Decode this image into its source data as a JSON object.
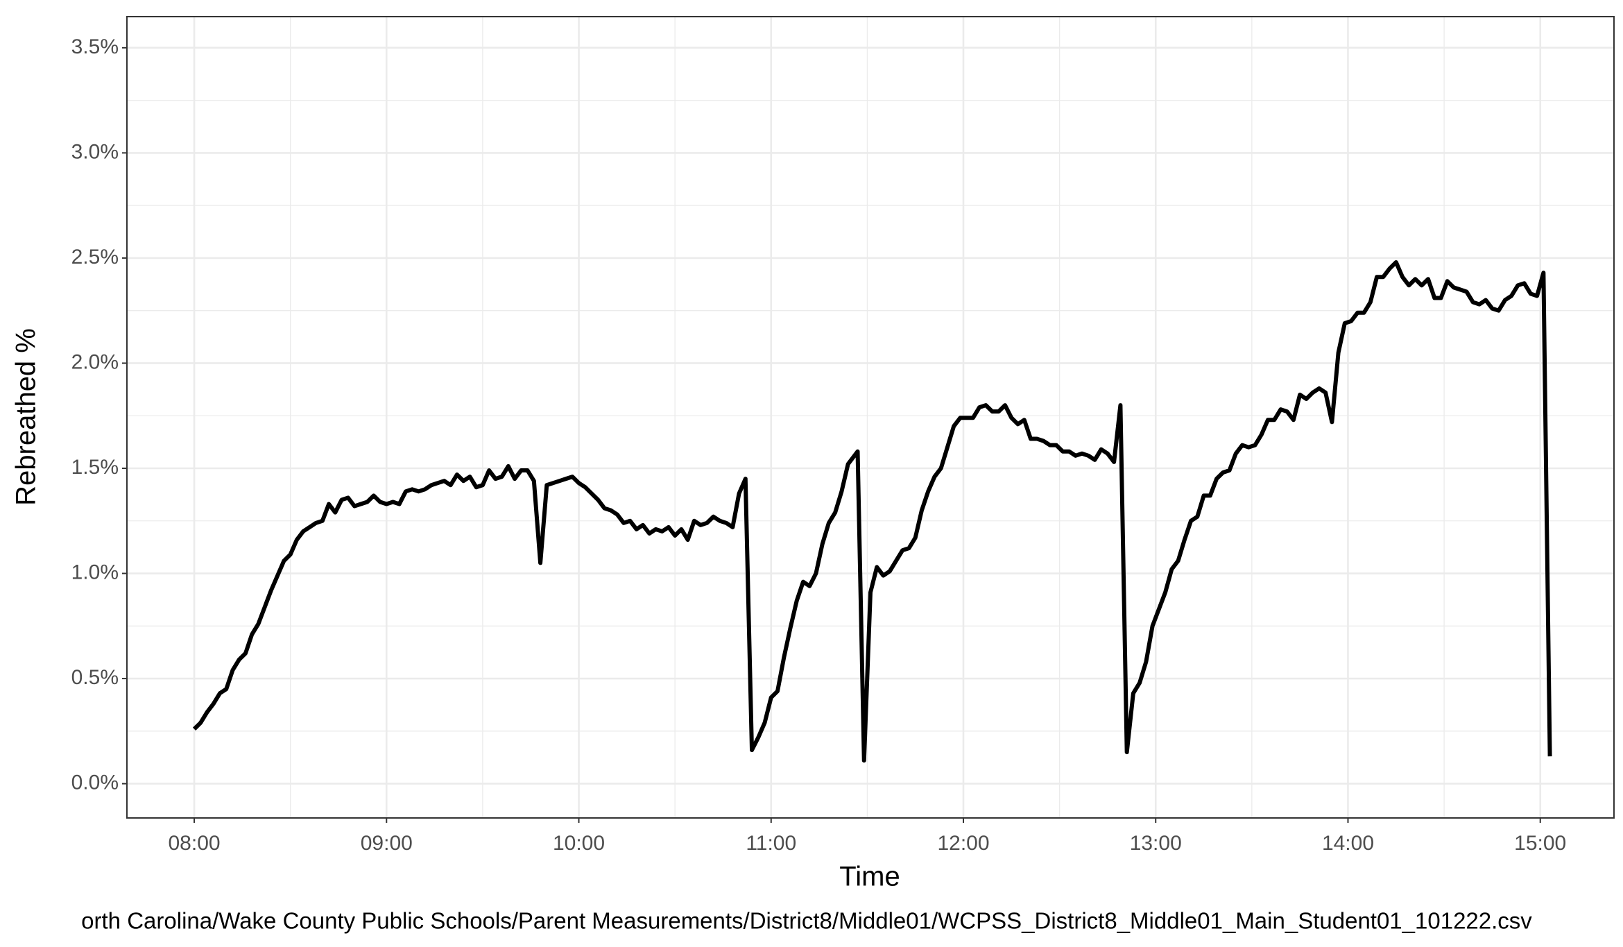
{
  "chart_data": {
    "type": "line",
    "x_label": "Time",
    "y_label": "Rebreathed %",
    "caption": "orth Carolina/Wake County Public Schools/Parent Measurements/District8/Middle01/WCPSS_District8_Middle01_Main_Student01_101222.csv",
    "color": "#000000",
    "grid": true,
    "xlim": [
      "07:39",
      "15:23"
    ],
    "xticks": [
      "08:00",
      "09:00",
      "10:00",
      "11:00",
      "12:00",
      "13:00",
      "14:00",
      "15:00"
    ],
    "ylim": [
      -0.163,
      3.648
    ],
    "yticks": [
      {
        "value": 0,
        "label": "0.0%"
      },
      {
        "value": 0.5,
        "label": "0.5%"
      },
      {
        "value": 1,
        "label": "1.0%"
      },
      {
        "value": 1.5,
        "label": "1.5%"
      },
      {
        "value": 2,
        "label": "2.0%"
      },
      {
        "value": 2.5,
        "label": "2.5%"
      },
      {
        "value": 3,
        "label": "3.0%"
      },
      {
        "value": 3.5,
        "label": "3.5%"
      }
    ],
    "x": [
      "08:00",
      "08:02",
      "08:04",
      "08:06",
      "08:08",
      "08:10",
      "08:12",
      "08:14",
      "08:16",
      "08:18",
      "08:20",
      "08:22",
      "08:24",
      "08:26",
      "08:28",
      "08:30",
      "08:32",
      "08:34",
      "08:36",
      "08:38",
      "08:40",
      "08:42",
      "08:44",
      "08:46",
      "08:48",
      "08:50",
      "08:52",
      "08:54",
      "08:56",
      "08:58",
      "09:00",
      "09:02",
      "09:04",
      "09:06",
      "09:08",
      "09:10",
      "09:12",
      "09:14",
      "09:16",
      "09:18",
      "09:20",
      "09:22",
      "09:24",
      "09:26",
      "09:28",
      "09:30",
      "09:32",
      "09:34",
      "09:36",
      "09:38",
      "09:40",
      "09:42",
      "09:44",
      "09:46",
      "09:48",
      "09:50",
      "09:52",
      "09:54",
      "09:56",
      "09:58",
      "10:00",
      "10:02",
      "10:04",
      "10:06",
      "10:08",
      "10:10",
      "10:12",
      "10:14",
      "10:16",
      "10:18",
      "10:20",
      "10:22",
      "10:24",
      "10:26",
      "10:28",
      "10:30",
      "10:32",
      "10:34",
      "10:36",
      "10:38",
      "10:40",
      "10:42",
      "10:44",
      "10:46",
      "10:48",
      "10:50",
      "10:52",
      "10:54",
      "10:56",
      "10:58",
      "11:00",
      "11:02",
      "11:04",
      "11:06",
      "11:08",
      "11:10",
      "11:12",
      "11:14",
      "11:16",
      "11:18",
      "11:20",
      "11:22",
      "11:24",
      "11:27",
      "11:29",
      "11:31",
      "11:33",
      "11:35",
      "11:37",
      "11:39",
      "11:41",
      "11:43",
      "11:45",
      "11:47",
      "11:49",
      "11:51",
      "11:53",
      "11:55",
      "11:57",
      "11:59",
      "12:01",
      "12:03",
      "12:05",
      "12:07",
      "12:09",
      "12:11",
      "12:13",
      "12:15",
      "12:17",
      "12:19",
      "12:21",
      "12:23",
      "12:25",
      "12:27",
      "12:29",
      "12:31",
      "12:33",
      "12:35",
      "12:37",
      "12:39",
      "12:41",
      "12:43",
      "12:45",
      "12:47",
      "12:49",
      "12:51",
      "12:53",
      "12:55",
      "12:57",
      "12:59",
      "13:01",
      "13:03",
      "13:05",
      "13:07",
      "13:09",
      "13:11",
      "13:13",
      "13:15",
      "13:17",
      "13:19",
      "13:21",
      "13:23",
      "13:25",
      "13:27",
      "13:29",
      "13:31",
      "13:33",
      "13:35",
      "13:37",
      "13:39",
      "13:41",
      "13:43",
      "13:45",
      "13:47",
      "13:49",
      "13:51",
      "13:53",
      "13:55",
      "13:57",
      "13:59",
      "14:01",
      "14:03",
      "14:05",
      "14:07",
      "14:09",
      "14:11",
      "14:13",
      "14:15",
      "14:17",
      "14:19",
      "14:21",
      "14:23",
      "14:25",
      "14:27",
      "14:29",
      "14:31",
      "14:33",
      "14:35",
      "14:37",
      "14:39",
      "14:41",
      "14:43",
      "14:45",
      "14:47",
      "14:49",
      "14:51",
      "14:53",
      "14:55",
      "14:57",
      "14:59",
      "15:01",
      "15:03"
    ],
    "values": [
      0.26,
      0.29,
      0.34,
      0.38,
      0.43,
      0.45,
      0.54,
      0.59,
      0.62,
      0.71,
      0.76,
      0.84,
      0.92,
      0.99,
      1.06,
      1.09,
      1.16,
      1.2,
      1.22,
      1.24,
      1.25,
      1.33,
      1.29,
      1.35,
      1.36,
      1.32,
      1.33,
      1.34,
      1.37,
      1.34,
      1.33,
      1.34,
      1.33,
      1.39,
      1.4,
      1.39,
      1.4,
      1.42,
      1.43,
      1.44,
      1.42,
      1.47,
      1.44,
      1.46,
      1.41,
      1.42,
      1.49,
      1.45,
      1.46,
      1.51,
      1.45,
      1.49,
      1.49,
      1.44,
      1.05,
      1.42,
      1.43,
      1.44,
      1.45,
      1.46,
      1.43,
      1.41,
      1.38,
      1.35,
      1.31,
      1.3,
      1.28,
      1.24,
      1.25,
      1.21,
      1.23,
      1.19,
      1.21,
      1.2,
      1.22,
      1.18,
      1.21,
      1.16,
      1.25,
      1.23,
      1.24,
      1.27,
      1.25,
      1.24,
      1.22,
      1.38,
      1.45,
      0.16,
      0.22,
      0.29,
      0.41,
      0.44,
      0.6,
      0.74,
      0.87,
      0.96,
      0.94,
      1.0,
      1.14,
      1.24,
      1.29,
      1.39,
      1.52,
      1.58,
      0.11,
      0.91,
      1.03,
      0.99,
      1.01,
      1.06,
      1.11,
      1.12,
      1.17,
      1.3,
      1.39,
      1.46,
      1.5,
      1.6,
      1.7,
      1.74,
      1.74,
      1.74,
      1.79,
      1.8,
      1.77,
      1.77,
      1.8,
      1.74,
      1.71,
      1.73,
      1.64,
      1.64,
      1.63,
      1.61,
      1.61,
      1.58,
      1.58,
      1.56,
      1.57,
      1.56,
      1.54,
      1.59,
      1.57,
      1.53,
      1.8,
      0.15,
      0.43,
      0.48,
      0.58,
      0.75,
      0.83,
      0.91,
      1.02,
      1.06,
      1.16,
      1.25,
      1.27,
      1.37,
      1.37,
      1.45,
      1.48,
      1.49,
      1.57,
      1.61,
      1.6,
      1.61,
      1.66,
      1.73,
      1.73,
      1.78,
      1.77,
      1.73,
      1.85,
      1.83,
      1.86,
      1.88,
      1.86,
      1.72,
      2.05,
      2.19,
      2.2,
      2.24,
      2.24,
      2.29,
      2.41,
      2.41,
      2.45,
      2.48,
      2.41,
      2.37,
      2.4,
      2.37,
      2.4,
      2.31,
      2.31,
      2.39,
      2.36,
      2.35,
      2.34,
      2.29,
      2.28,
      2.3,
      2.26,
      2.25,
      2.3,
      2.32,
      2.37,
      2.38,
      2.33,
      2.32,
      2.43,
      0.13
    ]
  }
}
